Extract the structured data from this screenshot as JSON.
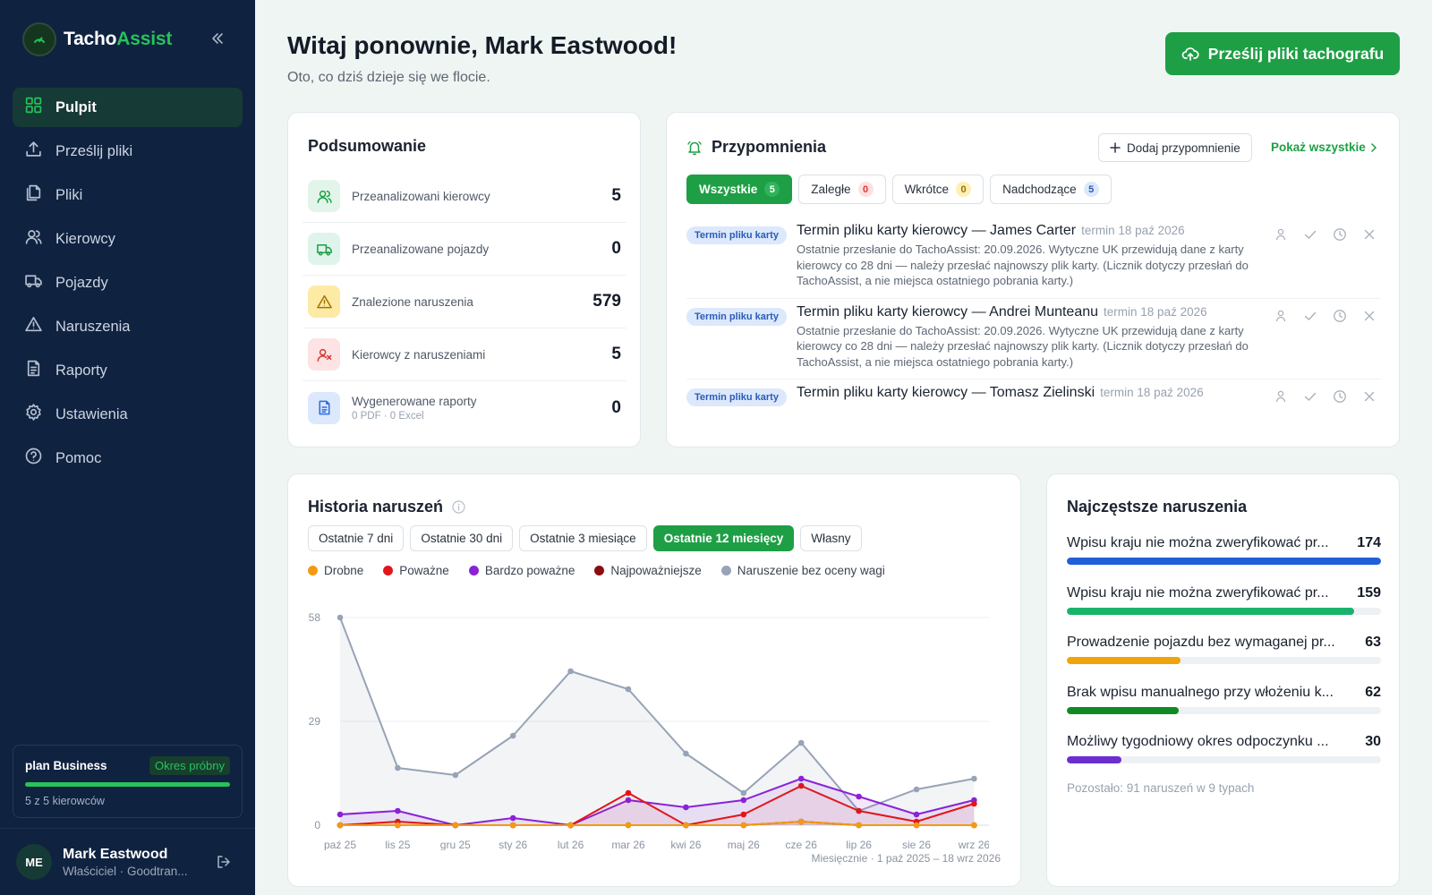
{
  "app": {
    "brand_part1": "Tacho",
    "brand_part2": "Assist"
  },
  "sidebar": {
    "items": [
      {
        "label": "Pulpit",
        "icon": "dashboard-icon",
        "active": true
      },
      {
        "label": "Prześlij pliki",
        "icon": "upload-icon"
      },
      {
        "label": "Pliki",
        "icon": "files-icon"
      },
      {
        "label": "Kierowcy",
        "icon": "users-icon"
      },
      {
        "label": "Pojazdy",
        "icon": "truck-icon"
      },
      {
        "label": "Naruszenia",
        "icon": "warning-icon"
      },
      {
        "label": "Raporty",
        "icon": "report-icon"
      },
      {
        "label": "Ustawienia",
        "icon": "gear-icon"
      },
      {
        "label": "Pomoc",
        "icon": "help-icon"
      }
    ],
    "plan": {
      "name": "plan Business",
      "badge": "Okres próbny",
      "drivers": "5 z 5 kierowców",
      "usage_fraction": 1.0
    },
    "user": {
      "initials": "ME",
      "name": "Mark Eastwood",
      "role": "Właściciel · Goodtran..."
    }
  },
  "header": {
    "greeting": "Witaj ponownie, Mark Eastwood!",
    "subtitle": "Oto, co dziś dzieje się we flocie.",
    "upload_button": "Prześlij pliki tachografu"
  },
  "summary": {
    "title": "Podsumowanie",
    "rows": [
      {
        "label": "Przeanalizowani kierowcy",
        "value": "5",
        "icon": "users-icon",
        "bg": "#e3f4ea",
        "fg": "#1e9f45"
      },
      {
        "label": "Przeanalizowane pojazdy",
        "value": "0",
        "icon": "truck-icon",
        "bg": "#dff4ea",
        "fg": "#1e9f45"
      },
      {
        "label": "Znalezione naruszenia",
        "value": "579",
        "icon": "warning-icon",
        "bg": "#fdeaa5",
        "fg": "#a57400"
      },
      {
        "label": "Kierowcy z naruszeniami",
        "value": "5",
        "icon": "user-x-icon",
        "bg": "#fde3e3",
        "fg": "#d33a3a"
      },
      {
        "label": "Wygenerowane raporty",
        "sub": "0 PDF · 0 Excel",
        "value": "0",
        "icon": "document-icon",
        "bg": "#dce8fb",
        "fg": "#2b6de0"
      }
    ]
  },
  "reminders": {
    "title": "Przypomnienia",
    "add_label": "Dodaj przypomnienie",
    "show_all": "Pokaż wszystkie",
    "filters": [
      {
        "label": "Wszystkie",
        "count": "5",
        "style": "green",
        "active": true
      },
      {
        "label": "Zaległe",
        "count": "0",
        "style": "red"
      },
      {
        "label": "Wkrótce",
        "count": "0",
        "style": "yellow"
      },
      {
        "label": "Nadchodzące",
        "count": "5",
        "style": "blue"
      }
    ],
    "items": [
      {
        "tag": "Termin pliku karty",
        "title": "Termin pliku karty kierowcy — James Carter",
        "due": "termin 18 paź 2026",
        "desc": "Ostatnie przesłanie do TachoAssist: 20.09.2026. Wytyczne UK przewidują dane z karty kierowcy co 28 dni — należy przesłać najnowszy plik karty. (Licznik dotyczy przesłań do TachoAssist, a nie miejsca ostatniego pobrania karty.)"
      },
      {
        "tag": "Termin pliku karty",
        "title": "Termin pliku karty kierowcy — Andrei Munteanu",
        "due": "termin 18 paź 2026",
        "desc": "Ostatnie przesłanie do TachoAssist: 20.09.2026. Wytyczne UK przewidują dane z karty kierowcy co 28 dni — należy przesłać najnowszy plik karty. (Licznik dotyczy przesłań do TachoAssist, a nie miejsca ostatniego pobrania karty.)"
      },
      {
        "tag": "Termin pliku karty",
        "title": "Termin pliku karty kierowcy — Tomasz Zielinski",
        "due": "termin 18 paź 2026",
        "desc": ""
      }
    ]
  },
  "history": {
    "title": "Historia naruszeń",
    "ranges": [
      {
        "label": "Ostatnie 7 dni"
      },
      {
        "label": "Ostatnie 30 dni"
      },
      {
        "label": "Ostatnie 3 miesiące"
      },
      {
        "label": "Ostatnie 12 miesięcy",
        "active": true
      },
      {
        "label": "Własny"
      }
    ],
    "footer": "Miesięcznie · 1 paź 2025 – 18 wrz 2026"
  },
  "chart_data": {
    "type": "line",
    "categories": [
      "paź 25",
      "lis 25",
      "gru 25",
      "sty 26",
      "lut 26",
      "mar 26",
      "kwi 26",
      "maj 26",
      "cze 26",
      "lip 26",
      "sie 26",
      "wrz 26"
    ],
    "y_ticks": [
      "0",
      "29",
      "58"
    ],
    "ylim": [
      0,
      58
    ],
    "grid": true,
    "legend_position": "top-left",
    "series": [
      {
        "name": "Naruszenie bez oceny wagi",
        "color": "#97a3b6",
        "values": [
          58,
          16,
          14,
          25,
          43,
          38,
          20,
          9,
          23,
          4,
          10,
          13
        ]
      },
      {
        "name": "Bardzo poważne",
        "color": "#8a22d6",
        "values": [
          3,
          4,
          0,
          2,
          0,
          7,
          5,
          7,
          13,
          8,
          3,
          7
        ]
      },
      {
        "name": "Poważne",
        "color": "#e0161b",
        "values": [
          0,
          1,
          0,
          0,
          0,
          9,
          0,
          3,
          11,
          4,
          1,
          6
        ]
      },
      {
        "name": "Drobne",
        "color": "#f29a12",
        "values": [
          0,
          0,
          0,
          0,
          0,
          0,
          0,
          0,
          1,
          0,
          0,
          0
        ]
      },
      {
        "name": "Najpoważniejsze",
        "color": "#8b0d0d",
        "values": [
          0,
          0,
          0,
          0,
          0,
          0,
          0,
          0,
          1,
          0,
          0,
          0
        ]
      }
    ],
    "legend_order": [
      "Drobne",
      "Poważne",
      "Bardzo poważne",
      "Najpoważniejsze",
      "Naruszenie bez oceny wagi"
    ]
  },
  "top_violations": {
    "title": "Najczęstsze naruszenia",
    "items": [
      {
        "label": "Wpisu kraju nie można zweryfikować pr...",
        "value": 174,
        "color": "#1f5fd8"
      },
      {
        "label": "Wpisu kraju nie można zweryfikować pr...",
        "value": 159,
        "color": "#19b36c"
      },
      {
        "label": "Prowadzenie pojazdu bez wymaganej pr...",
        "value": 63,
        "color": "#f0a30a"
      },
      {
        "label": "Brak wpisu manualnego przy włożeniu k...",
        "value": 62,
        "color": "#118a25"
      },
      {
        "label": "Możliwy tygodniowy okres odpoczynku ...",
        "value": 30,
        "color": "#6b2fd0"
      }
    ],
    "max": 174,
    "remaining": "Pozostało: 91 naruszeń w 9 typach"
  }
}
